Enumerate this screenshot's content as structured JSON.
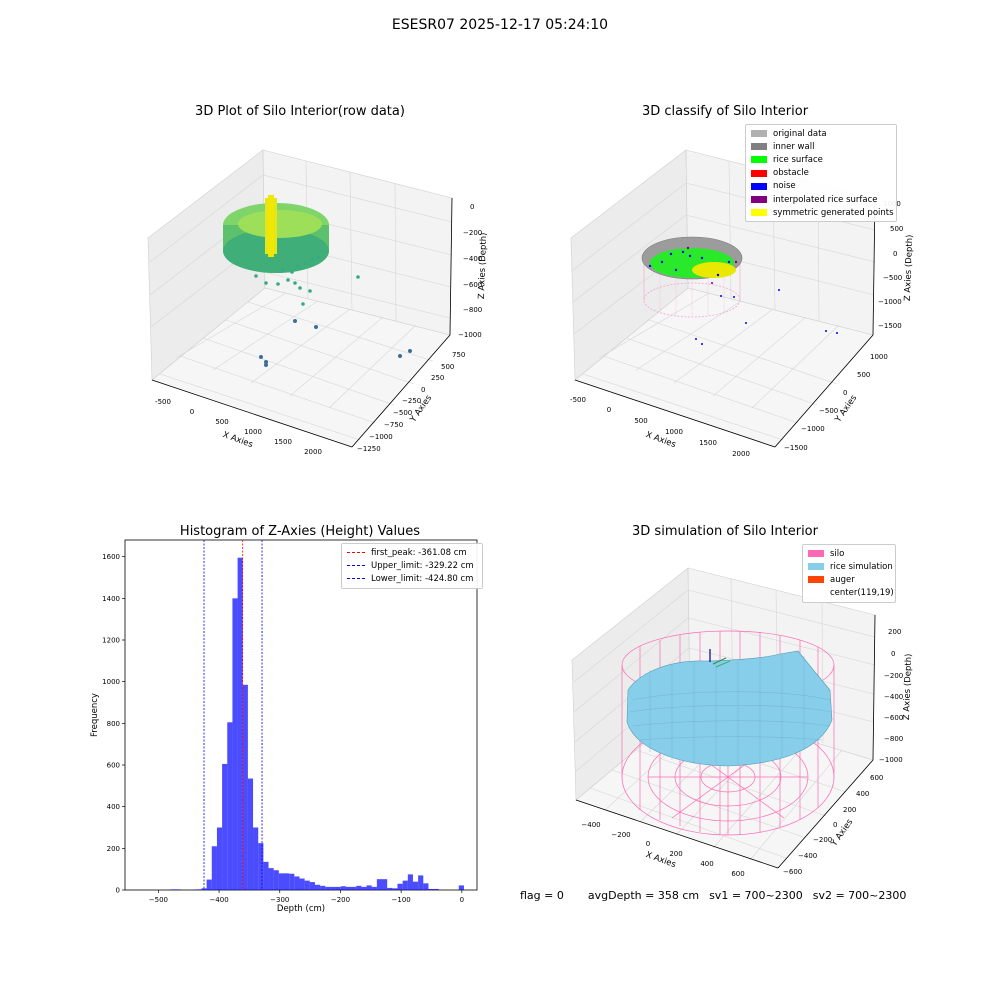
{
  "suptitle": "ESESR07 2025-12-17 05:24:10",
  "panels": {
    "raw": {
      "title": "3D Plot of Silo Interior(row data)",
      "xlabel": "X Axies",
      "ylabel": "Y Axies",
      "zlabel": "Z Axies (Depth)",
      "xticks": [
        "-500",
        "0",
        "500",
        "1000",
        "1500",
        "2000"
      ],
      "yticks": [
        "750",
        "500",
        "250",
        "0",
        "−250",
        "−500",
        "−750",
        "−1000",
        "−1250"
      ],
      "zticks": [
        "0",
        "−200",
        "−400",
        "−600",
        "−800",
        "−1000"
      ]
    },
    "classify": {
      "title": "3D classify of Silo Interior",
      "xlabel": "X Axies",
      "ylabel": "Y Axies",
      "zlabel": "Z Axies (Depth)",
      "xticks": [
        "-500",
        "0",
        "500",
        "1000",
        "1500",
        "2000"
      ],
      "yticks": [
        "1000",
        "500",
        "0",
        "−500",
        "−1000",
        "−1500"
      ],
      "zticks": [
        "1000",
        "500",
        "0",
        "−500",
        "−1000",
        "−1500"
      ],
      "legend": [
        {
          "label": "original data",
          "color": "#b0b0b0"
        },
        {
          "label": "inner wall",
          "color": "#808080"
        },
        {
          "label": "rice surface",
          "color": "#00ff00"
        },
        {
          "label": "obstacle",
          "color": "#ff0000"
        },
        {
          "label": "noise",
          "color": "#0000ff"
        },
        {
          "label": "interpolated rice surface",
          "color": "#800080"
        },
        {
          "label": "symmetric generated points",
          "color": "#ffff00"
        }
      ]
    },
    "simulation": {
      "title": "3D simulation of Silo Interior",
      "xlabel": "X Axies",
      "ylabel": "Y Axies",
      "zlabel": "Z Axies (Depth)",
      "xticks": [
        "−400",
        "−200",
        "0",
        "200",
        "400",
        "600"
      ],
      "yticks": [
        "600",
        "400",
        "200",
        "0",
        "−200",
        "−400",
        "−600"
      ],
      "zticks": [
        "200",
        "0",
        "−200",
        "−400",
        "−600",
        "−800",
        "−1000"
      ],
      "legend": [
        {
          "label": "silo",
          "color": "#ff69b4"
        },
        {
          "label": "rice simulation",
          "color": "#87ceeb"
        },
        {
          "label": "auger",
          "color": "#ff4500"
        },
        {
          "label": "center(119,19)",
          "color": "#ffffff"
        }
      ]
    }
  },
  "chart_data": {
    "type": "bar",
    "title": "Histogram of Z-Axies (Height) Values",
    "xlabel": "Depth (cm)",
    "ylabel": "Frequency",
    "xlim": [
      -555,
      25
    ],
    "ylim": [
      0,
      1680
    ],
    "xticks": [
      -500,
      -400,
      -300,
      -200,
      -100,
      0
    ],
    "yticks": [
      0,
      200,
      400,
      600,
      800,
      1000,
      1200,
      1400,
      1600
    ],
    "bar_color": "#0000ff",
    "bin_width": 8.5,
    "bins": [
      {
        "x": -480,
        "v": 3
      },
      {
        "x": -471.5,
        "v": 3
      },
      {
        "x": -446,
        "v": 2
      },
      {
        "x": -437.5,
        "v": 3
      },
      {
        "x": -429,
        "v": 8
      },
      {
        "x": -420.5,
        "v": 50
      },
      {
        "x": -412,
        "v": 210
      },
      {
        "x": -403.5,
        "v": 300
      },
      {
        "x": -395,
        "v": 605
      },
      {
        "x": -386.5,
        "v": 805
      },
      {
        "x": -378,
        "v": 1400
      },
      {
        "x": -369.5,
        "v": 1595
      },
      {
        "x": -361,
        "v": 985
      },
      {
        "x": -352.5,
        "v": 535
      },
      {
        "x": -344,
        "v": 300
      },
      {
        "x": -335.5,
        "v": 225
      },
      {
        "x": -327,
        "v": 135
      },
      {
        "x": -318.5,
        "v": 105
      },
      {
        "x": -310,
        "v": 95
      },
      {
        "x": -301.5,
        "v": 80
      },
      {
        "x": -293,
        "v": 80
      },
      {
        "x": -284.5,
        "v": 78
      },
      {
        "x": -276,
        "v": 65
      },
      {
        "x": -267.5,
        "v": 55
      },
      {
        "x": -259,
        "v": 45
      },
      {
        "x": -250.5,
        "v": 38
      },
      {
        "x": -242,
        "v": 25
      },
      {
        "x": -233.5,
        "v": 20
      },
      {
        "x": -225,
        "v": 15
      },
      {
        "x": -216.5,
        "v": 15
      },
      {
        "x": -208,
        "v": 15
      },
      {
        "x": -199.5,
        "v": 18
      },
      {
        "x": -191,
        "v": 15
      },
      {
        "x": -182.5,
        "v": 15
      },
      {
        "x": -174,
        "v": 20
      },
      {
        "x": -165.5,
        "v": 15
      },
      {
        "x": -157,
        "v": 22
      },
      {
        "x": -148.5,
        "v": 15
      },
      {
        "x": -140,
        "v": 52
      },
      {
        "x": -131.5,
        "v": 52
      },
      {
        "x": -123,
        "v": 10
      },
      {
        "x": -114.5,
        "v": 8
      },
      {
        "x": -106,
        "v": 30
      },
      {
        "x": -97.5,
        "v": 45
      },
      {
        "x": -89,
        "v": 75
      },
      {
        "x": -80.5,
        "v": 40
      },
      {
        "x": -72,
        "v": 70
      },
      {
        "x": -63.5,
        "v": 32
      },
      {
        "x": -55,
        "v": 5
      },
      {
        "x": -46.5,
        "v": 5
      },
      {
        "x": -5,
        "v": 22
      }
    ],
    "reference_lines": [
      {
        "label": "first_peak: -361.08 cm",
        "x": -361.08,
        "color": "#ff0000"
      },
      {
        "label": "Upper_limit: -329.22 cm",
        "x": -329.22,
        "color": "#0000ff"
      },
      {
        "label": "Lower_limit: -424.80 cm",
        "x": -424.8,
        "color": "#0000ff"
      }
    ]
  },
  "status": {
    "flag": "flag = 0",
    "avg": "avgDepth = 358 cm",
    "sv1": "sv1 = 700~2300",
    "sv2": "sv2 = 700~2300"
  }
}
